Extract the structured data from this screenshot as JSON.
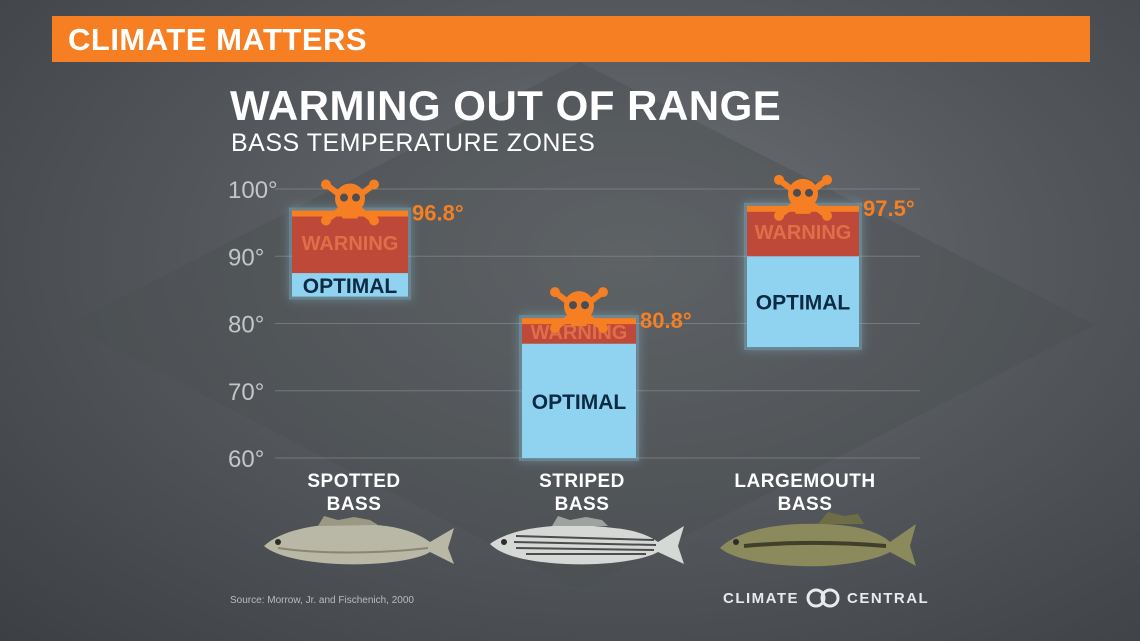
{
  "banner": {
    "label": "CLIMATE MATTERS"
  },
  "chart_data": {
    "type": "bar",
    "title": "WARMING OUT OF RANGE",
    "subtitle": "BASS TEMPERATURE ZONES",
    "ylim": [
      60,
      100
    ],
    "yticks": [
      "100°",
      "90°",
      "80°",
      "70°",
      "60°"
    ],
    "grid": true,
    "categories": [
      "SPOTTED BASS",
      "STRIPED BASS",
      "LARGEMOUTH BASS"
    ],
    "series": [
      {
        "name": "OPTIMAL",
        "ranges": [
          [
            84,
            87.5
          ],
          [
            60,
            77
          ],
          [
            76.5,
            90
          ]
        ]
      },
      {
        "name": "WARNING",
        "ranges": [
          [
            87.5,
            96.8
          ],
          [
            77,
            80.8
          ],
          [
            90,
            97.5
          ]
        ]
      }
    ],
    "max_labels": [
      "96.8°",
      "80.8°",
      "97.5°"
    ],
    "colors": {
      "optimal": "#8fd3f0",
      "warning": "#c9432f",
      "accent": "#f57f22",
      "grid": "#8c9094"
    }
  },
  "source": "Source: Morrow, Jr. and Fischenich, 2000",
  "brand": {
    "left": "CLIMATE",
    "right": "CENTRAL"
  }
}
